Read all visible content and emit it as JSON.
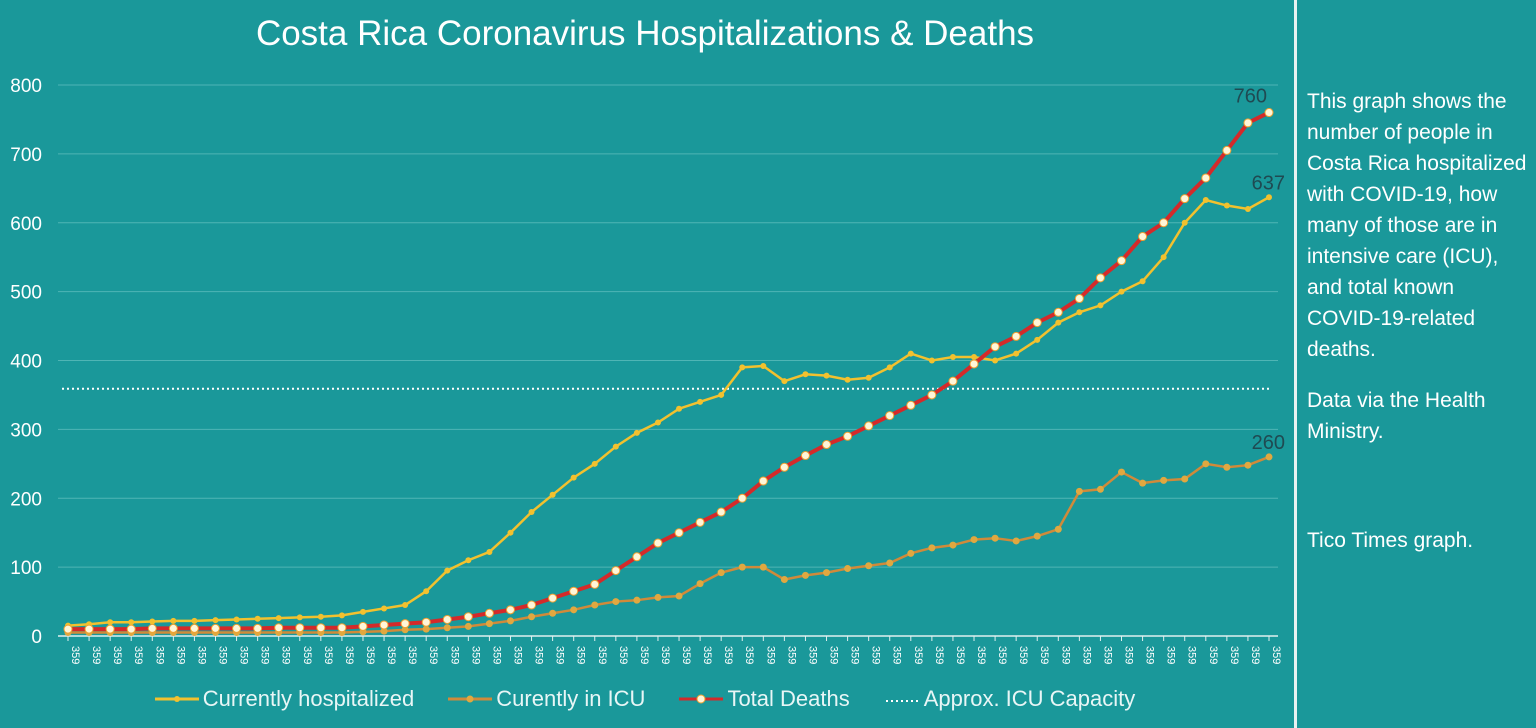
{
  "chart_data": {
    "type": "line",
    "title": "Costa Rica Coronavirus Hospitalizations & Deaths",
    "xlabel": "",
    "ylabel": "",
    "ylim": [
      0,
      800
    ],
    "yticks": [
      "0",
      "100",
      "200",
      "300",
      "400",
      "500",
      "600",
      "700",
      "800"
    ],
    "grid": true,
    "legend_position": "bottom",
    "categories": [
      "359",
      "359",
      "359",
      "359",
      "359",
      "359",
      "359",
      "359",
      "359",
      "359",
      "359",
      "359",
      "359",
      "359",
      "359",
      "359",
      "359",
      "359",
      "359",
      "359",
      "359",
      "359",
      "359",
      "359",
      "359",
      "359",
      "359",
      "359",
      "359",
      "359",
      "359",
      "359",
      "359",
      "359",
      "359",
      "359",
      "359",
      "359",
      "359",
      "359",
      "359",
      "359",
      "359",
      "359",
      "359",
      "359",
      "359",
      "359",
      "359",
      "359",
      "359",
      "359",
      "359",
      "359",
      "359",
      "359",
      "359",
      "359"
    ],
    "series": [
      {
        "name": "Currently hospitalized",
        "color": "#f2c12e",
        "end_label": "637",
        "values": [
          15,
          17,
          20,
          20,
          21,
          22,
          22,
          23,
          24,
          25,
          26,
          27,
          28,
          30,
          35,
          40,
          45,
          65,
          95,
          110,
          122,
          150,
          180,
          205,
          230,
          250,
          275,
          295,
          310,
          330,
          340,
          350,
          390,
          392,
          370,
          380,
          378,
          372,
          375,
          390,
          410,
          400,
          405,
          405,
          400,
          410,
          430,
          455,
          470,
          480,
          500,
          515,
          550,
          600,
          633,
          625,
          620,
          637
        ]
      },
      {
        "name": "Curently in ICU",
        "color": "#d08a3a",
        "end_label": "260",
        "values": [
          5,
          5,
          5,
          5,
          5,
          5,
          5,
          5,
          5,
          5,
          5,
          5,
          5,
          5,
          6,
          7,
          9,
          10,
          12,
          14,
          18,
          22,
          28,
          33,
          38,
          45,
          50,
          52,
          56,
          58,
          76,
          92,
          100,
          100,
          82,
          88,
          92,
          98,
          102,
          106,
          120,
          128,
          132,
          140,
          142,
          138,
          145,
          155,
          210,
          213,
          238,
          222,
          226,
          228,
          250,
          245,
          248,
          260
        ]
      },
      {
        "name": "Total Deaths",
        "color": "#d42a2a",
        "end_label": "760",
        "values": [
          10,
          10,
          10,
          10,
          11,
          11,
          11,
          11,
          11,
          11,
          12,
          12,
          12,
          12,
          14,
          16,
          18,
          20,
          24,
          28,
          33,
          38,
          45,
          55,
          65,
          75,
          95,
          115,
          135,
          150,
          165,
          180,
          200,
          225,
          245,
          262,
          278,
          290,
          305,
          320,
          335,
          350,
          370,
          395,
          420,
          435,
          455,
          470,
          490,
          520,
          545,
          580,
          600,
          635,
          665,
          705,
          745,
          760
        ]
      }
    ],
    "reference_line": {
      "name": "Approx. ICU Capacity",
      "value": 359,
      "color": "#ffffff",
      "style": "dotted"
    }
  },
  "side_text": {
    "description": "This graph shows the number of people in Costa Rica hospitalized with COVID-19, how many of those are in intensive care (ICU), and total known COVID-19-related deaths.",
    "source": "Data via the Health Ministry.",
    "credit": "Tico Times graph."
  },
  "background_color": "#1a989a"
}
